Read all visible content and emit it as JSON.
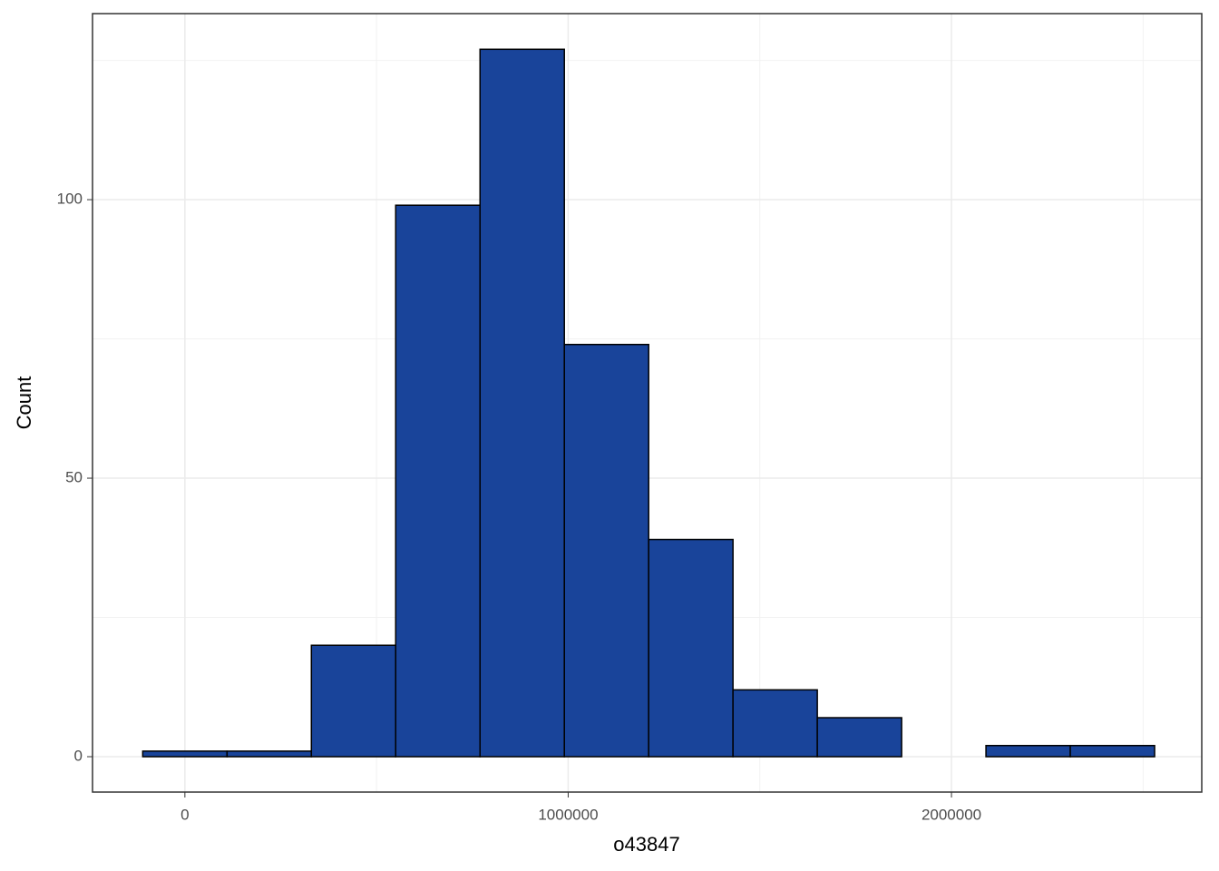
{
  "chart_data": {
    "type": "histogram",
    "x_label": "o43847",
    "y_label": "Count",
    "bins": [
      -110000,
      110000,
      330000,
      550000,
      770000,
      990000,
      1210000,
      1430000,
      1650000,
      1870000,
      2090000,
      2310000,
      2530000
    ],
    "values": [
      1,
      1,
      20,
      99,
      127,
      74,
      39,
      12,
      7,
      0,
      2,
      2
    ],
    "color": "#19449a",
    "edge_color": "#000000",
    "xlim": [
      -241000,
      2653000
    ],
    "xticks": [
      0,
      1000000,
      2000000
    ],
    "x_minor_grid": [
      500000,
      1500000,
      2500000
    ],
    "ylim": [
      -6.35,
      133.4
    ],
    "yticks": [
      0,
      50,
      100
    ],
    "y_minor_grid": [
      25,
      75,
      125
    ],
    "grid": true
  }
}
